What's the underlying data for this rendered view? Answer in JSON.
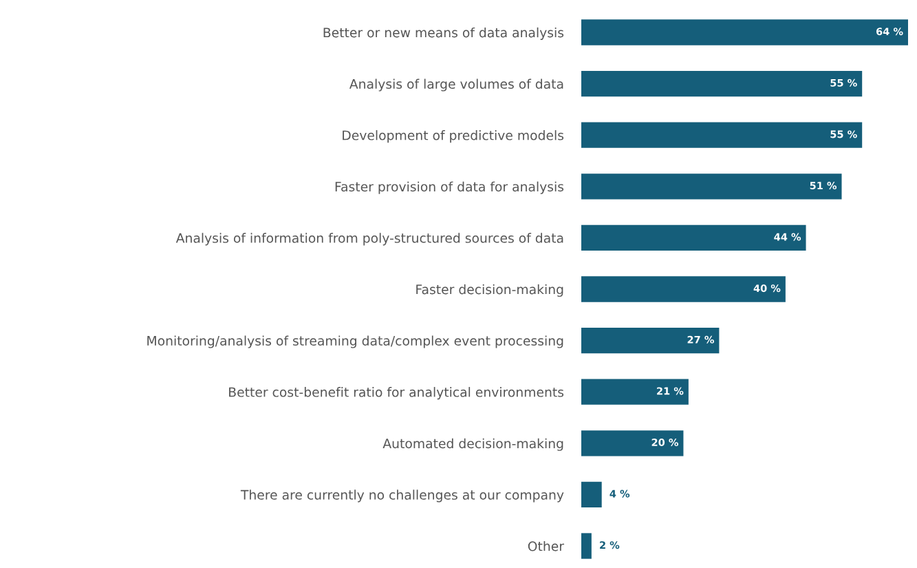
{
  "chart_data": {
    "type": "bar",
    "orientation": "horizontal",
    "categories": [
      "Better or new means of data analysis",
      "Analysis of large volumes of data",
      "Development of predictive models",
      "Faster provision of data for analysis",
      "Analysis of information from poly-structured sources of data",
      "Faster decision-making",
      "Monitoring/analysis of streaming data/complex event processing",
      "Better cost-benefit ratio for analytical environments",
      "Automated decision-making",
      "There are currently no challenges at our company",
      "Other"
    ],
    "values": [
      64,
      55,
      55,
      51,
      44,
      40,
      27,
      21,
      20,
      4,
      2
    ],
    "value_labels": [
      "64 %",
      "55 %",
      "55 %",
      "51 %",
      "44 %",
      "40 %",
      "27 %",
      "21 %",
      "20 %",
      "4 %",
      "2 %"
    ],
    "color": "#155e7a",
    "tick_labels": "y",
    "grid": false,
    "legend": false
  }
}
